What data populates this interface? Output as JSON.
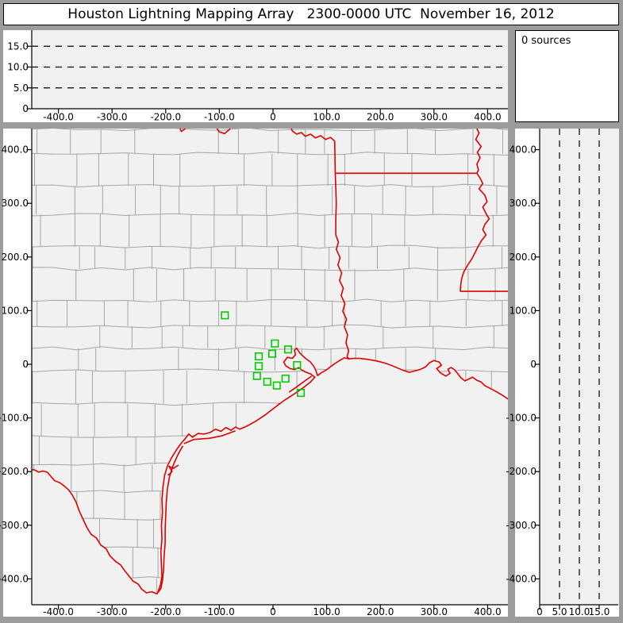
{
  "title": "Houston Lightning Mapping Array   2300-0000 UTC  November 16, 2012",
  "sources_panel": {
    "text": "0 sources"
  },
  "colors": {
    "frame_gray": "#9c9c9c",
    "panel_white": "#ffffff",
    "plot_bg": "#f1f1f1",
    "axis": "#000000",
    "county_line": "#a5a5a5",
    "state_border_red": "#dd0000",
    "station_green": "#00cc00",
    "text": "#000000"
  },
  "axes": {
    "east_west_km": {
      "tick_values": [
        -400,
        -300,
        -200,
        -100,
        0,
        100,
        200,
        300,
        400
      ],
      "tick_labels": [
        "-400.0",
        "-300.0",
        "-200.0",
        "-100.0",
        "0",
        "100.0",
        "200.0",
        "300.0",
        "400.0"
      ]
    },
    "north_south_km": {
      "tick_values": [
        400,
        300,
        200,
        100,
        0,
        -100,
        -200,
        -300,
        -400
      ],
      "tick_labels": [
        "400.0",
        "300.0",
        "200.0",
        "100.0",
        "0",
        "-100.0",
        "-200.0",
        "-300.0",
        "-400.0"
      ]
    },
    "altitude_km": {
      "tick_values": [
        0,
        5,
        10,
        15
      ],
      "tick_labels": [
        "0",
        "5.0",
        "10.0",
        "15.0"
      ],
      "dashed_values": [
        5,
        10,
        15
      ]
    }
  },
  "stations_km": [
    [
      -89.8,
      91.3
    ],
    [
      3.4,
      38.9
    ],
    [
      28.1,
      27.7
    ],
    [
      -1.5,
      19.7
    ],
    [
      -26.6,
      14.8
    ],
    [
      -26.6,
      -3.4
    ],
    [
      44.8,
      -1.5
    ],
    [
      -30.0,
      -21.7
    ],
    [
      -10.8,
      -32.5
    ],
    [
      23.2,
      -26.6
    ],
    [
      7.0,
      -39.5
    ],
    [
      51.8,
      -53.3
    ]
  ],
  "county_mesh": {
    "seed": 7,
    "row_step_km": 40,
    "col_step_km": 42,
    "jitter_km": 26,
    "skip_chance": 0.1
  },
  "red_boundaries": [
    {
      "name": "red-river-dip-1",
      "pts": [
        [
          -176,
          446
        ],
        [
          -171,
          434
        ],
        [
          -165,
          438
        ],
        [
          -160,
          446
        ]
      ]
    },
    {
      "name": "red-river-dip-2",
      "pts": [
        [
          -109,
          446
        ],
        [
          -100,
          433
        ],
        [
          -90,
          430
        ],
        [
          -81,
          438
        ],
        [
          -77,
          446
        ]
      ]
    },
    {
      "name": "red-river",
      "pts": [
        [
          31,
          446
        ],
        [
          36,
          435
        ],
        [
          44,
          429
        ],
        [
          53,
          432
        ],
        [
          60,
          425
        ],
        [
          70,
          429
        ],
        [
          79,
          422
        ],
        [
          89,
          426
        ],
        [
          98,
          419
        ],
        [
          107,
          423
        ],
        [
          115,
          416
        ]
      ]
    },
    {
      "name": "tx-ar-border",
      "pts": [
        [
          115,
          416
        ],
        [
          116,
          356
        ]
      ]
    },
    {
      "name": "ar-la-border",
      "pts": [
        [
          116,
          356
        ],
        [
          380,
          356
        ]
      ]
    },
    {
      "name": "tx-la-border-sabine",
      "pts": [
        [
          116,
          356
        ],
        [
          117,
          330
        ],
        [
          118,
          300
        ],
        [
          117,
          270
        ],
        [
          117,
          241
        ],
        [
          122,
          228
        ],
        [
          118,
          214
        ],
        [
          125,
          199
        ],
        [
          121,
          185
        ],
        [
          128,
          170
        ],
        [
          124,
          156
        ],
        [
          131,
          142
        ],
        [
          127,
          128
        ],
        [
          134,
          113
        ],
        [
          130,
          99
        ],
        [
          137,
          84
        ],
        [
          133,
          70
        ],
        [
          139,
          55
        ],
        [
          136,
          40
        ],
        [
          141,
          25
        ],
        [
          138,
          14
        ],
        [
          142,
          10
        ]
      ]
    },
    {
      "name": "mississippi-river",
      "pts": [
        [
          377,
          446
        ],
        [
          384,
          431
        ],
        [
          378,
          419
        ],
        [
          388,
          406
        ],
        [
          381,
          395
        ],
        [
          386,
          385
        ],
        [
          380,
          373
        ],
        [
          383,
          362
        ],
        [
          380,
          356
        ],
        [
          386,
          347
        ],
        [
          391,
          337
        ],
        [
          384,
          327
        ],
        [
          395,
          315
        ],
        [
          399,
          303
        ],
        [
          391,
          293
        ],
        [
          397,
          281
        ],
        [
          403,
          271
        ],
        [
          395,
          261
        ],
        [
          391,
          251
        ],
        [
          397,
          241
        ],
        [
          389,
          231
        ],
        [
          383,
          221
        ],
        [
          377,
          209
        ],
        [
          371,
          197
        ],
        [
          363,
          185
        ],
        [
          356,
          173
        ],
        [
          352,
          161
        ],
        [
          350,
          149
        ],
        [
          349,
          136
        ]
      ]
    },
    {
      "name": "la-ms-border",
      "pts": [
        [
          349,
          136
        ],
        [
          455,
          136
        ]
      ]
    },
    {
      "name": "gulf-coastline",
      "pts": [
        [
          455,
          -75
        ],
        [
          440,
          -66
        ],
        [
          428,
          -58
        ],
        [
          418,
          -52
        ],
        [
          405,
          -45
        ],
        [
          395,
          -40
        ],
        [
          388,
          -33
        ],
        [
          380,
          -30
        ],
        [
          372,
          -24
        ],
        [
          366,
          -27
        ],
        [
          358,
          -31
        ],
        [
          350,
          -25
        ],
        [
          344,
          -17
        ],
        [
          338,
          -10
        ],
        [
          332,
          -6
        ],
        [
          326,
          -9
        ],
        [
          330,
          -17
        ],
        [
          322,
          -22
        ],
        [
          312,
          -16
        ],
        [
          305,
          -8
        ],
        [
          314,
          -2
        ],
        [
          310,
          4
        ],
        [
          300,
          7
        ],
        [
          292,
          3
        ],
        [
          284,
          -5
        ],
        [
          276,
          -9
        ],
        [
          266,
          -12
        ],
        [
          254,
          -15
        ],
        [
          242,
          -11
        ],
        [
          230,
          -6
        ],
        [
          218,
          -1
        ],
        [
          206,
          3
        ],
        [
          194,
          6
        ],
        [
          178,
          9
        ],
        [
          162,
          11
        ],
        [
          150,
          11
        ],
        [
          142,
          10
        ],
        [
          133,
          12
        ],
        [
          124,
          7
        ],
        [
          112,
          -1
        ],
        [
          100,
          -10
        ],
        [
          90,
          -16
        ],
        [
          83,
          -21
        ],
        [
          80,
          -12
        ],
        [
          76,
          -4
        ],
        [
          70,
          4
        ],
        [
          62,
          10
        ],
        [
          56,
          15
        ],
        [
          50,
          21
        ],
        [
          44,
          30
        ],
        [
          40,
          26
        ],
        [
          42,
          18
        ],
        [
          36,
          11
        ],
        [
          27,
          13
        ],
        [
          20,
          4
        ],
        [
          24,
          -3
        ],
        [
          32,
          -8
        ],
        [
          40,
          -10
        ],
        [
          48,
          -6
        ],
        [
          54,
          -11
        ],
        [
          62,
          -15
        ],
        [
          70,
          -18
        ],
        [
          78,
          -24
        ],
        [
          70,
          -33
        ],
        [
          56,
          -44
        ],
        [
          40,
          -55
        ],
        [
          20,
          -68
        ],
        [
          4,
          -80
        ],
        [
          -14,
          -94
        ],
        [
          -32,
          -106
        ],
        [
          -48,
          -115
        ],
        [
          -62,
          -121
        ],
        [
          -70,
          -117
        ],
        [
          -78,
          -123
        ],
        [
          -88,
          -118
        ],
        [
          -97,
          -125
        ],
        [
          -107,
          -121
        ],
        [
          -117,
          -127
        ],
        [
          -128,
          -130
        ],
        [
          -140,
          -129
        ],
        [
          -150,
          -136
        ],
        [
          -157,
          -130
        ],
        [
          -164,
          -139
        ],
        [
          -171,
          -147
        ],
        [
          -179,
          -158
        ],
        [
          -189,
          -174
        ],
        [
          -197,
          -190
        ],
        [
          -202,
          -207
        ],
        [
          -205,
          -228
        ],
        [
          -207,
          -252
        ],
        [
          -206,
          -276
        ],
        [
          -208,
          -300
        ],
        [
          -207,
          -325
        ],
        [
          -209,
          -350
        ],
        [
          -208,
          -374
        ],
        [
          -207,
          -396
        ],
        [
          -210,
          -412
        ],
        [
          -214,
          -423
        ],
        [
          -216,
          -428
        ]
      ]
    },
    {
      "name": "rio-grande",
      "pts": [
        [
          -216,
          -428
        ],
        [
          -226,
          -424
        ],
        [
          -236,
          -426
        ],
        [
          -245,
          -419
        ],
        [
          -251,
          -410
        ],
        [
          -261,
          -404
        ],
        [
          -269,
          -394
        ],
        [
          -277,
          -384
        ],
        [
          -284,
          -374
        ],
        [
          -294,
          -367
        ],
        [
          -304,
          -357
        ],
        [
          -311,
          -344
        ],
        [
          -321,
          -337
        ],
        [
          -329,
          -324
        ],
        [
          -339,
          -317
        ],
        [
          -347,
          -304
        ],
        [
          -354,
          -289
        ],
        [
          -361,
          -274
        ],
        [
          -367,
          -257
        ],
        [
          -374,
          -244
        ],
        [
          -381,
          -234
        ],
        [
          -389,
          -227
        ],
        [
          -397,
          -221
        ],
        [
          -407,
          -217
        ],
        [
          -414,
          -209
        ],
        [
          -421,
          -201
        ],
        [
          -429,
          -199
        ],
        [
          -437,
          -201
        ],
        [
          -444,
          -197
        ],
        [
          -452,
          -196
        ]
      ]
    },
    {
      "name": "padre-island-barrier",
      "pts": [
        [
          -168,
          -152
        ],
        [
          -177,
          -168
        ],
        [
          -186,
          -188
        ],
        [
          -193,
          -210
        ],
        [
          -197,
          -233
        ],
        [
          -199,
          -258
        ],
        [
          -200,
          -283
        ],
        [
          -201,
          -308
        ],
        [
          -201,
          -333
        ],
        [
          -203,
          -358
        ],
        [
          -204,
          -383
        ],
        [
          -206,
          -403
        ],
        [
          -209,
          -418
        ],
        [
          -214,
          -425
        ]
      ]
    },
    {
      "name": "galveston-island",
      "pts": [
        [
          72,
          -22
        ],
        [
          58,
          -32
        ],
        [
          43,
          -43
        ],
        [
          30,
          -52
        ]
      ]
    },
    {
      "name": "matagorda-barrier",
      "pts": [
        [
          -70,
          -124
        ],
        [
          -94,
          -133
        ],
        [
          -119,
          -138
        ],
        [
          -147,
          -140
        ],
        [
          -166,
          -148
        ]
      ]
    },
    {
      "name": "corpus-christi-bay",
      "pts": [
        [
          -176,
          -188
        ],
        [
          -186,
          -194
        ],
        [
          -194,
          -190
        ],
        [
          -188,
          -200
        ],
        [
          -196,
          -207
        ]
      ]
    }
  ]
}
